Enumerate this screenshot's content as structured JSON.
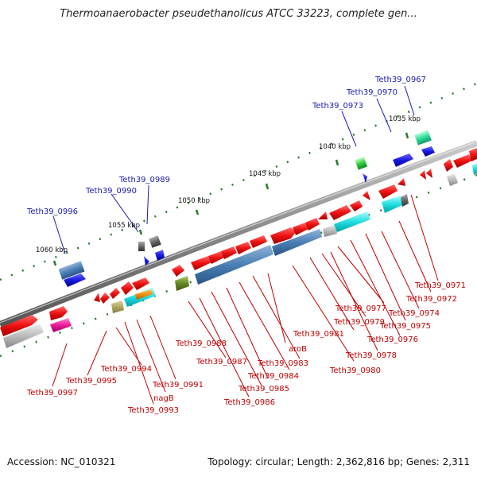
{
  "title": "Thermoanaerobacter pseudethanolicus ATCC 33223, complete gen...",
  "footer": {
    "accession": "Accession: NC_010321",
    "stats": "Topology: circular; Length: 2,362,816 bp; Genes: 2,311"
  },
  "ruler": [
    "1035 kbp",
    "1040 kbp",
    "1045 kbp",
    "1050 kbp",
    "1055 kbp",
    "1060 kbp"
  ],
  "labels_top": [
    "Teth39_0967",
    "Teth39_0970",
    "Teth39_0973",
    "Teth39_0989",
    "Teth39_0990",
    "Teth39_0996"
  ],
  "labels_bottom": [
    "Teth39_0971",
    "Teth39_0972",
    "Teth39_0974",
    "Teth39_0975",
    "Teth39_0976",
    "Teth39_0977",
    "Teth39_0978",
    "Teth39_0979",
    "Teth39_0980",
    "Teth39_0981",
    "aroB",
    "Teth39_0983",
    "Teth39_0984",
    "Teth39_0985",
    "Teth39_0986",
    "Teth39_0987",
    "Teth39_0988",
    "Teth39_0991",
    "nagB",
    "Teth39_0993",
    "Teth39_0994",
    "Teth39_0995",
    "Teth39_0997"
  ],
  "colors": {
    "forward": "#ee1111",
    "reverse": "#1a1ae0",
    "backbone": "#888888",
    "tick": "#2a7a2a",
    "label_top": "#1a1ab0",
    "label_bottom": "#c00000"
  }
}
